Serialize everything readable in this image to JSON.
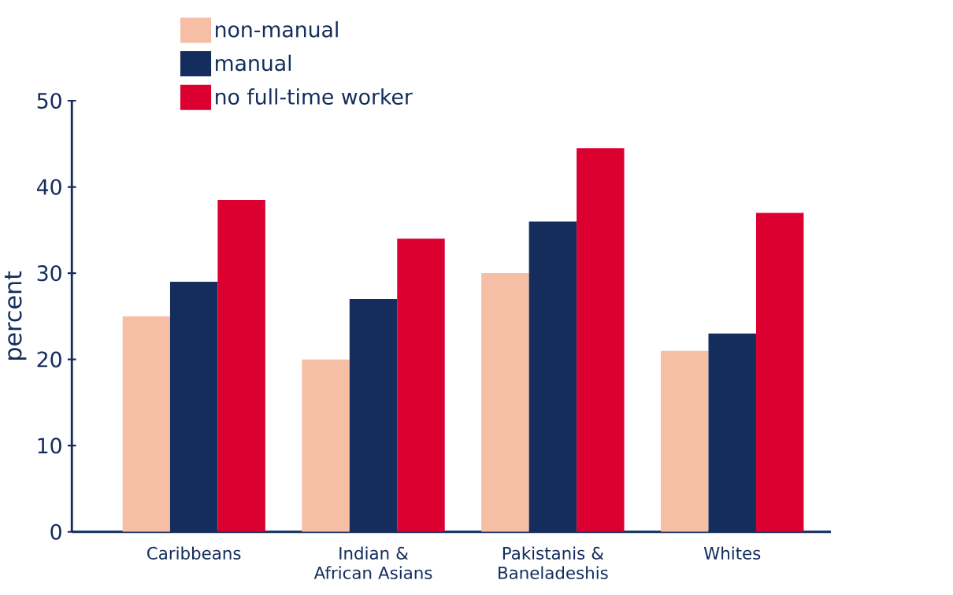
{
  "chart_data": {
    "type": "bar",
    "ylabel": "percent",
    "categories": [
      "Caribbeans",
      "Indian & African Asians",
      "Pakistanis & Baneladeshis",
      "Whites"
    ],
    "series": [
      {
        "name": "non-manual",
        "color": "#f7bea6",
        "values": [
          25,
          20,
          30,
          21
        ]
      },
      {
        "name": "manual",
        "color": "#142d5c",
        "values": [
          29,
          27,
          36,
          23
        ]
      },
      {
        "name": "no full-time worker",
        "color": "#dc0030",
        "values": [
          38.5,
          34,
          44.5,
          37
        ]
      }
    ],
    "ylim": [
      0,
      50
    ],
    "yticks": [
      0,
      10,
      20,
      30,
      40,
      50
    ],
    "grid": false,
    "legend": "top left"
  }
}
